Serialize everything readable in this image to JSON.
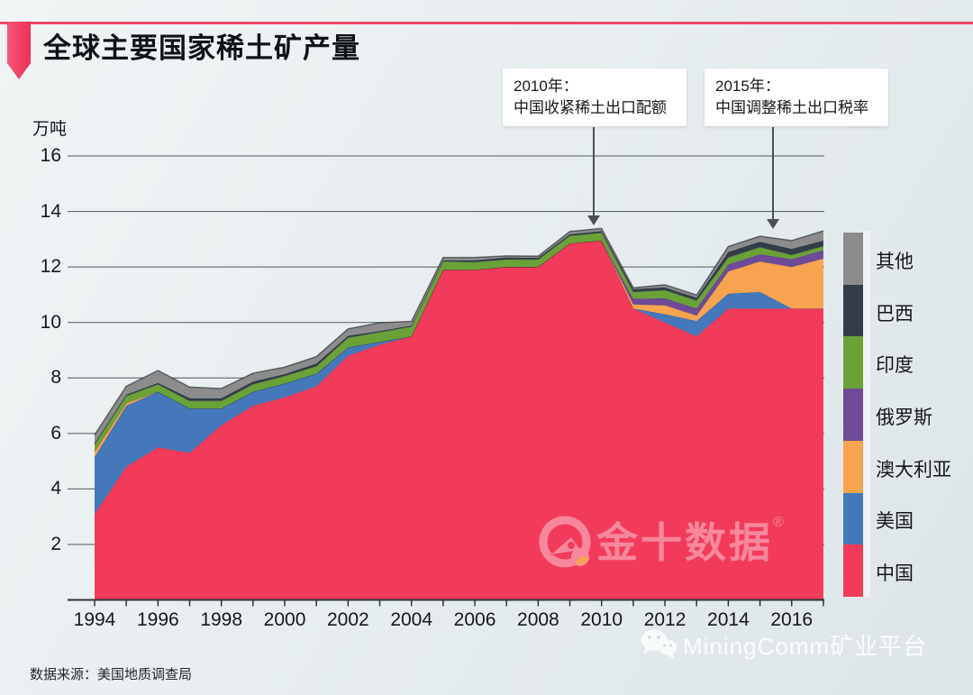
{
  "header": {
    "title": "全球主要国家稀土矿产量"
  },
  "y_axis": {
    "unit": "万吨",
    "ticks": [
      16,
      14,
      12,
      10,
      8,
      6,
      4,
      2
    ]
  },
  "x_axis": {
    "tick_years": [
      1994,
      1996,
      1998,
      2000,
      2002,
      2004,
      2006,
      2008,
      2010,
      2012,
      2014,
      2016
    ]
  },
  "annotations": [
    {
      "year_label": "2010年：",
      "text": "中国收紧稀土出口配额"
    },
    {
      "year_label": "2015年：",
      "text": "中国调整稀土出口税率"
    }
  ],
  "legend": [
    {
      "label": "其他",
      "color": "#8c8c8c"
    },
    {
      "label": "巴西",
      "color": "#323d49"
    },
    {
      "label": "印度",
      "color": "#6ba238"
    },
    {
      "label": "俄罗斯",
      "color": "#6f4a97"
    },
    {
      "label": "澳大利亚",
      "color": "#f8a350"
    },
    {
      "label": "美国",
      "color": "#4577bb"
    },
    {
      "label": "中国",
      "color": "#f23b5a"
    }
  ],
  "chart_data": {
    "type": "area",
    "stacked": true,
    "title": "全球主要国家稀土矿产量",
    "xlabel": "",
    "ylabel": "万吨",
    "ylim": [
      0,
      16
    ],
    "grid": true,
    "legend_position": "right",
    "x": [
      1994,
      1995,
      1996,
      1997,
      1998,
      1999,
      2000,
      2001,
      2002,
      2003,
      2004,
      2005,
      2006,
      2007,
      2008,
      2009,
      2010,
      2011,
      2012,
      2013,
      2014,
      2015,
      2016,
      2017
    ],
    "series": [
      {
        "name": "中国",
        "color": "#f23b5a",
        "values": [
          3.1,
          4.8,
          5.5,
          5.3,
          6.3,
          7.0,
          7.3,
          7.7,
          8.8,
          9.2,
          9.5,
          11.9,
          11.9,
          12.0,
          12.0,
          12.85,
          12.95,
          10.5,
          10.0,
          9.5,
          10.5,
          10.5,
          10.5,
          10.5
        ]
      },
      {
        "name": "美国",
        "color": "#4577bb",
        "values": [
          2.05,
          2.2,
          2.0,
          1.6,
          0.6,
          0.5,
          0.5,
          0.45,
          0.3,
          0.1,
          0,
          0,
          0,
          0,
          0,
          0,
          0,
          0,
          0.3,
          0.55,
          0.54,
          0.6,
          0,
          0
        ]
      },
      {
        "name": "澳大利亚",
        "color": "#f8a350",
        "values": [
          0.2,
          0.1,
          0,
          0,
          0,
          0,
          0,
          0,
          0,
          0,
          0,
          0,
          0,
          0,
          0,
          0,
          0,
          0.15,
          0.32,
          0.2,
          0.8,
          1.1,
          1.5,
          1.8
        ]
      },
      {
        "name": "俄罗斯",
        "color": "#6f4a97",
        "values": [
          0,
          0,
          0,
          0,
          0,
          0,
          0,
          0,
          0,
          0,
          0,
          0,
          0,
          0,
          0,
          0,
          0,
          0.2,
          0.25,
          0.25,
          0.25,
          0.26,
          0.28,
          0.3
        ]
      },
      {
        "name": "印度",
        "color": "#6ba238",
        "values": [
          0.25,
          0.25,
          0.27,
          0.27,
          0.27,
          0.27,
          0.27,
          0.27,
          0.35,
          0.35,
          0.35,
          0.3,
          0.27,
          0.27,
          0.27,
          0.27,
          0.28,
          0.25,
          0.29,
          0.29,
          0.25,
          0.25,
          0.15,
          0.15
        ]
      },
      {
        "name": "巴西",
        "color": "#323d49",
        "values": [
          0.05,
          0.05,
          0.05,
          0.1,
          0.1,
          0.1,
          0.07,
          0.1,
          0.07,
          0.04,
          0.04,
          0.04,
          0.07,
          0.07,
          0.06,
          0.06,
          0.06,
          0.1,
          0.1,
          0.1,
          0.2,
          0.2,
          0.22,
          0.2
        ]
      },
      {
        "name": "其他",
        "color": "#8c8c8c",
        "values": [
          0.3,
          0.3,
          0.45,
          0.4,
          0.35,
          0.3,
          0.25,
          0.25,
          0.25,
          0.3,
          0.15,
          0.1,
          0.1,
          0.06,
          0.06,
          0.1,
          0.1,
          0.05,
          0.1,
          0.1,
          0.2,
          0.2,
          0.3,
          0.35
        ]
      }
    ]
  },
  "watermark": {
    "text": "金十数据",
    "reg": "®"
  },
  "source": {
    "label": "数据来源：美国地质调查局"
  },
  "footer_right": {
    "platform": "MiningComm矿业平台"
  }
}
